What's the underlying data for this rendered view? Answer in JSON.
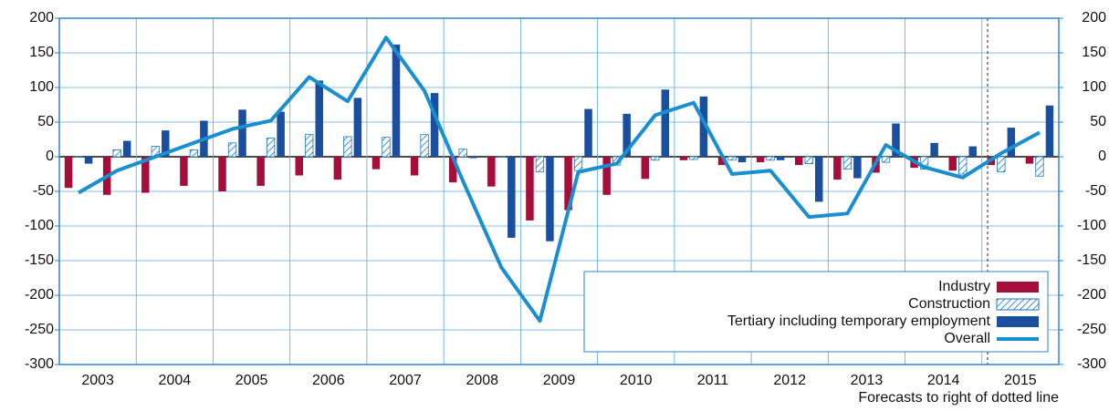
{
  "chart_data": {
    "type": "bar",
    "categories": [
      "2003",
      null,
      "2004",
      null,
      "2005",
      null,
      "2006",
      null,
      "2007",
      null,
      "2008",
      null,
      "2009",
      null,
      "2010",
      null,
      "2011",
      null,
      "2012",
      null,
      "2013",
      null,
      "2014",
      null,
      "2015",
      null
    ],
    "series": [
      {
        "name": "Industry",
        "color": "#a50d3a",
        "values": [
          -45,
          -55,
          -52,
          -42,
          -50,
          -42,
          -27,
          -33,
          -18,
          -27,
          -37,
          -43,
          -92,
          -77,
          -55,
          -32,
          -5,
          -12,
          -8,
          -12,
          -33,
          -23,
          -16,
          -20,
          -12,
          -10
        ]
      },
      {
        "name": "Construction",
        "color": "#1b75bc",
        "pattern": "hatch",
        "values": [
          0,
          10,
          15,
          10,
          20,
          27,
          32,
          29,
          28,
          32,
          11,
          0,
          -22,
          -20,
          -12,
          -5,
          -4,
          -5,
          -5,
          -10,
          -18,
          -8,
          -18,
          -25,
          -22,
          -28
        ]
      },
      {
        "name": "Tertiary including temporary employment",
        "color": "#1a4fa0",
        "values": [
          -10,
          23,
          38,
          52,
          68,
          65,
          110,
          85,
          162,
          92,
          -2,
          -117,
          -122,
          69,
          62,
          97,
          87,
          -8,
          -5,
          -65,
          -31,
          48,
          20,
          15,
          42,
          74
        ]
      },
      {
        "name": "Overall",
        "type": "line",
        "color": "#1a8fd0",
        "values": [
          -52,
          -20,
          0,
          20,
          40,
          52,
          115,
          80,
          172,
          95,
          -35,
          -160,
          -237,
          -22,
          -10,
          60,
          78,
          -25,
          -20,
          -87,
          -82,
          17,
          -15,
          -30,
          5,
          35
        ]
      }
    ],
    "ylim": [
      -300,
      200
    ],
    "yticks": [
      -300,
      -250,
      -200,
      -150,
      -100,
      -50,
      0,
      50,
      100,
      150,
      200
    ],
    "y2lim": [
      -300,
      200
    ],
    "y2ticks": [
      -300,
      -250,
      -200,
      -150,
      -100,
      -50,
      0,
      50,
      100,
      150,
      200
    ],
    "grid": true,
    "legend": "lower right",
    "annotation": "Forecasts to right of dotted line"
  }
}
